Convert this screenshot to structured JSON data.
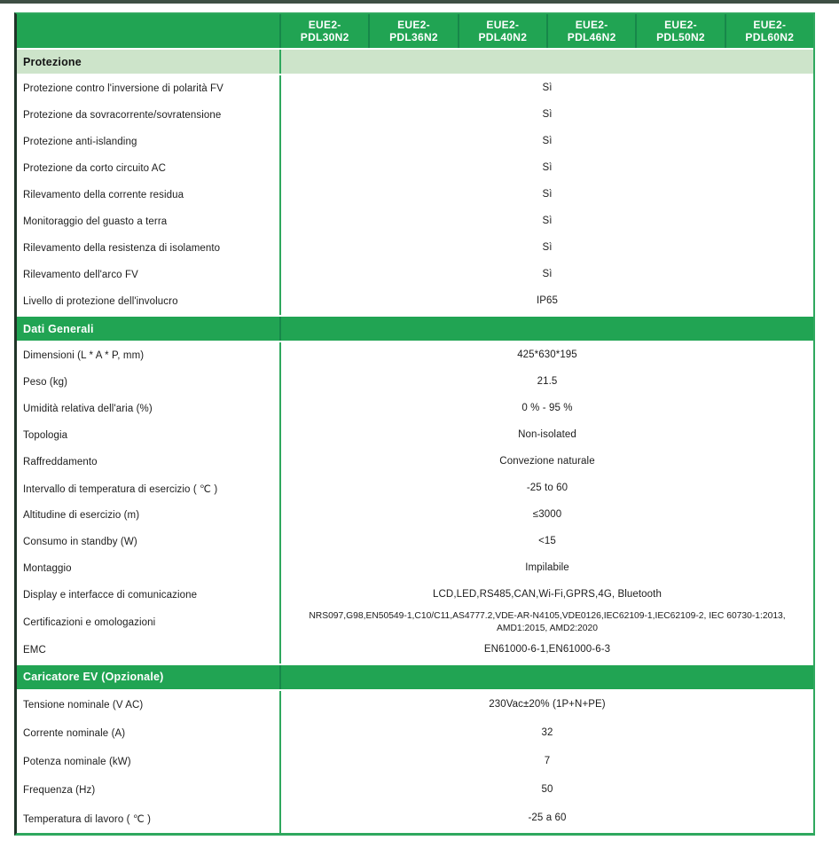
{
  "colors": {
    "green": "#21a453",
    "green-dark": "#17874a",
    "light-green": "#cde4ca",
    "divider": "#2fa85e",
    "left-border": "#203428",
    "top-strip": "#3e4f44"
  },
  "header": {
    "models": [
      {
        "line1": "EUE2-",
        "line2": "PDL30N2"
      },
      {
        "line1": "EUE2-",
        "line2": "PDL36N2"
      },
      {
        "line1": "EUE2-",
        "line2": "PDL40N2"
      },
      {
        "line1": "EUE2-",
        "line2": "PDL46N2"
      },
      {
        "line1": "EUE2-",
        "line2": "PDL50N2"
      },
      {
        "line1": "EUE2-",
        "line2": "PDL60N2"
      }
    ]
  },
  "sections": [
    {
      "title": "Protezione",
      "variant": "light",
      "rows": [
        {
          "label": "Protezione contro l'inversione di polarità FV",
          "value": "Sì"
        },
        {
          "label": "Protezione da sovracorrente/sovratensione",
          "value": "Sì"
        },
        {
          "label": "Protezione anti-islanding",
          "value": "Sì"
        },
        {
          "label": "Protezione da corto circuito AC",
          "value": "Sì"
        },
        {
          "label": "Rilevamento della corrente residua",
          "value": "Sì"
        },
        {
          "label": "Monitoraggio del guasto a terra",
          "value": "Sì"
        },
        {
          "label": "Rilevamento della resistenza di isolamento",
          "value": "Sì"
        },
        {
          "label": "Rilevamento dell'arco FV",
          "value": "Sì"
        },
        {
          "label": "Livello di protezione dell'involucro",
          "value": "IP65"
        }
      ]
    },
    {
      "title": "Dati Generali",
      "variant": "green",
      "rows": [
        {
          "label": "Dimensioni (L * A * P, mm)",
          "value": "425*630*195"
        },
        {
          "label": "Peso (kg)",
          "value": "21.5"
        },
        {
          "label": "Umidità relativa dell'aria (%)",
          "value": "0 % - 95 %"
        },
        {
          "label": "Topologia",
          "value": "Non-isolated"
        },
        {
          "label": "Raffreddamento",
          "value": "Convezione naturale"
        },
        {
          "label": "Intervallo di temperatura di esercizio ( ℃ )",
          "value": "-25 to 60"
        },
        {
          "label": "Altitudine di esercizio (m)",
          "value": "≤3000"
        },
        {
          "label": "Consumo in standby (W)",
          "value": "<15"
        },
        {
          "label": "Montaggio",
          "value": "Impilabile"
        },
        {
          "label": "Display e interfacce di comunicazione",
          "value": "LCD,LED,RS485,CAN,Wi-Fi,GPRS,4G, Bluetooth"
        },
        {
          "label": "Certificazioni e omologazioni",
          "value": "NRS097,G98,EN50549-1,C10/C11,AS4777.2,VDE-AR-N4105,VDE0126,IEC62109-1,IEC62109-2, IEC 60730-1:2013, AMD1:2015, AMD2:2020"
        },
        {
          "label": "EMC",
          "value": "EN61000-6-1,EN61000-6-3"
        }
      ]
    },
    {
      "title": "Caricatore EV (Opzionale)",
      "variant": "green",
      "rows": [
        {
          "label": "Tensione nominale (V AC)",
          "value": "230Vac±20% (1P+N+PE)"
        },
        {
          "label": "Corrente nominale (A)",
          "value": "32"
        },
        {
          "label": "Potenza nominale (kW)",
          "value": "7"
        },
        {
          "label": "Frequenza (Hz)",
          "value": "50"
        },
        {
          "label": "Temperatura di lavoro ( ℃ )",
          "value": "-25 a 60"
        }
      ]
    }
  ]
}
